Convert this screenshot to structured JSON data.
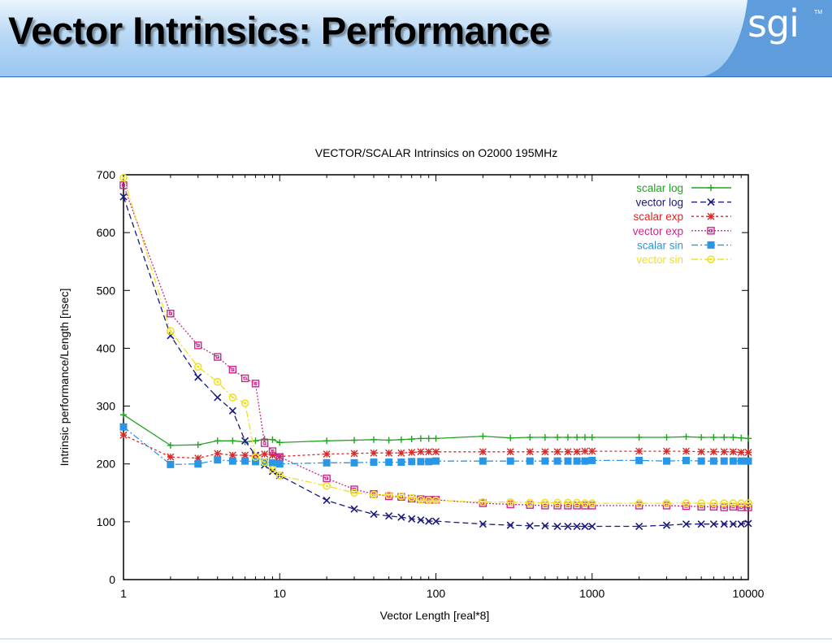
{
  "slide": {
    "title": "Vector Intrinsics: Performance",
    "logo_text": "sgi",
    "trademark": "TM",
    "header_color": "#99c6f2",
    "header_light": "#ffffff"
  },
  "chart_data": {
    "type": "line",
    "title": "VECTOR/SCALAR Intrinsics on O2000 195MHz",
    "xlabel": "Vector Length [real*8]",
    "ylabel": "Intrinsic performance/Length [nsec]",
    "x_scale": "log",
    "xlim": [
      1,
      10000
    ],
    "ylim": [
      0,
      700
    ],
    "x_ticks": [
      "1",
      "10",
      "100",
      "1000",
      "10000"
    ],
    "y_ticks": [
      "0",
      "100",
      "200",
      "300",
      "400",
      "500",
      "600",
      "700"
    ],
    "legend_position": "top-right",
    "grid": false,
    "series": [
      {
        "name": "scalar log",
        "color": "#21a321",
        "marker": "plus",
        "dash": "solid",
        "x": [
          1,
          2,
          3,
          4,
          5,
          6,
          7,
          8,
          9,
          10,
          20,
          30,
          40,
          50,
          60,
          70,
          80,
          90,
          100,
          200,
          300,
          400,
          500,
          600,
          700,
          800,
          900,
          1000,
          2000,
          3000,
          4000,
          5000,
          6000,
          7000,
          8000,
          9000,
          10000
        ],
        "y": [
          285,
          232,
          233,
          240,
          240,
          238,
          240,
          243,
          242,
          237,
          240,
          241,
          242,
          241,
          242,
          243,
          244,
          244,
          244,
          248,
          245,
          246,
          246,
          246,
          246,
          246,
          246,
          246,
          246,
          246,
          247,
          246,
          246,
          246,
          246,
          245,
          244
        ]
      },
      {
        "name": "vector log",
        "color": "#1a1a7a",
        "marker": "x",
        "dash": "dashed",
        "x": [
          1,
          2,
          3,
          4,
          5,
          6,
          7,
          8,
          9,
          10,
          20,
          30,
          40,
          50,
          60,
          70,
          80,
          90,
          100,
          200,
          300,
          400,
          500,
          600,
          700,
          800,
          900,
          1000,
          2000,
          3000,
          4000,
          5000,
          6000,
          7000,
          8000,
          9000,
          10000
        ],
        "y": [
          662,
          422,
          350,
          315,
          292,
          240,
          215,
          198,
          187,
          180,
          137,
          122,
          113,
          110,
          108,
          105,
          103,
          101,
          101,
          96,
          94,
          93,
          93,
          92,
          92,
          92,
          92,
          92,
          92,
          94,
          96,
          96,
          96,
          96,
          96,
          96,
          97
        ]
      },
      {
        "name": "scalar exp",
        "color": "#d92828",
        "marker": "star",
        "dash": "dotted",
        "x": [
          1,
          2,
          3,
          4,
          5,
          6,
          7,
          8,
          9,
          10,
          20,
          30,
          40,
          50,
          60,
          70,
          80,
          90,
          100,
          200,
          300,
          400,
          500,
          600,
          700,
          800,
          900,
          1000,
          2000,
          3000,
          4000,
          5000,
          6000,
          7000,
          8000,
          9000,
          10000
        ],
        "y": [
          250,
          212,
          210,
          218,
          215,
          215,
          213,
          217,
          215,
          213,
          217,
          218,
          219,
          219,
          219,
          220,
          221,
          221,
          221,
          221,
          221,
          221,
          221,
          221,
          221,
          221,
          222,
          222,
          222,
          222,
          222,
          221,
          221,
          221,
          221,
          220,
          220
        ]
      },
      {
        "name": "vector exp",
        "color": "#c8288c",
        "marker": "box",
        "dash": "dense",
        "x": [
          1,
          2,
          3,
          4,
          5,
          6,
          7,
          8,
          9,
          10,
          20,
          30,
          40,
          50,
          60,
          70,
          80,
          90,
          100,
          200,
          300,
          400,
          500,
          600,
          700,
          800,
          900,
          1000,
          2000,
          3000,
          4000,
          5000,
          6000,
          7000,
          8000,
          9000,
          10000
        ],
        "y": [
          682,
          460,
          405,
          385,
          363,
          348,
          339,
          236,
          222,
          212,
          175,
          156,
          148,
          144,
          143,
          140,
          139,
          138,
          138,
          132,
          130,
          129,
          128,
          128,
          128,
          128,
          128,
          128,
          128,
          128,
          127,
          126,
          126,
          125,
          126,
          125,
          125
        ]
      },
      {
        "name": "scalar sin",
        "color": "#2a96e6",
        "marker": "filledbox",
        "dash": "dashdot",
        "x": [
          1,
          2,
          3,
          4,
          5,
          6,
          7,
          8,
          9,
          10,
          20,
          30,
          40,
          50,
          60,
          70,
          80,
          90,
          100,
          200,
          300,
          400,
          500,
          600,
          700,
          800,
          900,
          1000,
          2000,
          3000,
          4000,
          5000,
          6000,
          7000,
          8000,
          9000,
          10000
        ],
        "y": [
          264,
          199,
          200,
          207,
          205,
          205,
          204,
          203,
          202,
          200,
          202,
          202,
          203,
          203,
          203,
          204,
          204,
          204,
          205,
          205,
          205,
          205,
          205,
          205,
          205,
          205,
          205,
          206,
          206,
          205,
          206,
          205,
          205,
          205,
          205,
          205,
          205
        ]
      },
      {
        "name": "vector sin",
        "color": "#f0e020",
        "marker": "circle",
        "dash": "dashdot",
        "x": [
          1,
          2,
          3,
          4,
          5,
          6,
          7,
          8,
          9,
          10,
          20,
          30,
          40,
          50,
          60,
          70,
          80,
          90,
          100,
          200,
          300,
          400,
          500,
          600,
          700,
          800,
          900,
          1000,
          2000,
          3000,
          4000,
          5000,
          6000,
          7000,
          8000,
          9000,
          10000
        ],
        "y": [
          695,
          430,
          368,
          342,
          315,
          305,
          212,
          203,
          190,
          180,
          162,
          150,
          147,
          146,
          144,
          141,
          138,
          137,
          137,
          134,
          134,
          133,
          133,
          133,
          133,
          133,
          132,
          132,
          132,
          132,
          132,
          132,
          132,
          132,
          132,
          132,
          132
        ]
      }
    ]
  }
}
